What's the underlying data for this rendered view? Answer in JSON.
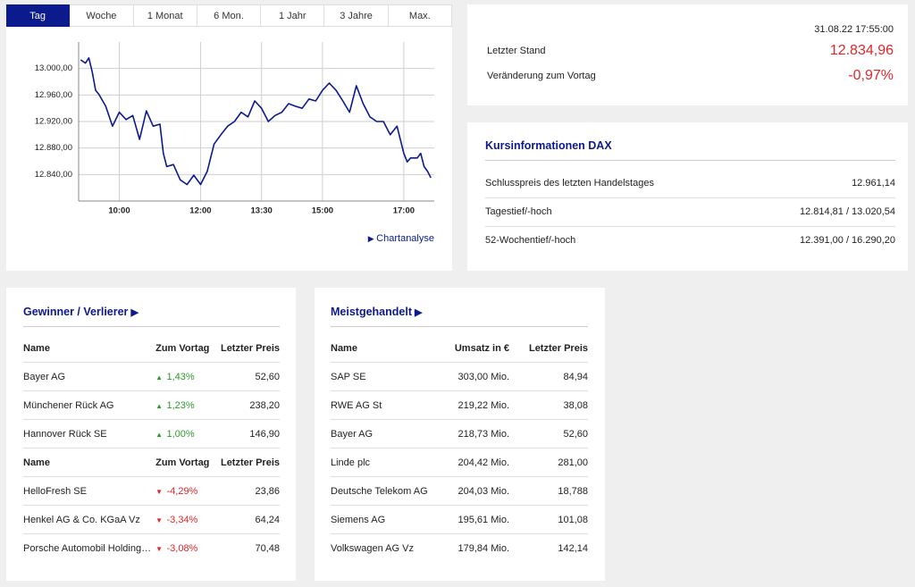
{
  "tabs": [
    "Tag",
    "Woche",
    "1 Monat",
    "6 Mon.",
    "1 Jahr",
    "3 Jahre",
    "Max."
  ],
  "chart_data": {
    "type": "line",
    "color": "#0b1a8c",
    "grid": true,
    "x": [
      "09:03",
      "09:10",
      "09:15",
      "09:20",
      "09:25",
      "09:30",
      "09:40",
      "09:50",
      "10:00",
      "10:10",
      "10:20",
      "10:30",
      "10:40",
      "10:50",
      "11:00",
      "11:05",
      "11:10",
      "11:20",
      "11:30",
      "11:40",
      "11:50",
      "12:00",
      "12:10",
      "12:20",
      "12:30",
      "12:40",
      "12:50",
      "13:00",
      "13:10",
      "13:20",
      "13:30",
      "13:40",
      "13:50",
      "14:00",
      "14:10",
      "14:20",
      "14:30",
      "14:40",
      "14:50",
      "15:00",
      "15:10",
      "15:20",
      "15:30",
      "15:40",
      "15:50",
      "16:00",
      "16:10",
      "16:20",
      "16:30",
      "16:40",
      "16:50",
      "17:00",
      "17:05",
      "17:10",
      "17:20",
      "17:25",
      "17:30",
      "17:35",
      "17:40"
    ],
    "values": [
      13013,
      13008,
      13016,
      12995,
      12967,
      12961,
      12943,
      12913,
      12934,
      12923,
      12929,
      12893,
      12936,
      12913,
      12916,
      12872,
      12852,
      12855,
      12832,
      12825,
      12839,
      12825,
      12845,
      12886,
      12900,
      12913,
      12920,
      12934,
      12927,
      12951,
      12940,
      12920,
      12929,
      12934,
      12947,
      12943,
      12940,
      12954,
      12951,
      12967,
      12978,
      12967,
      12951,
      12934,
      12974,
      12947,
      12927,
      12920,
      12920,
      12900,
      12913,
      12872,
      12859,
      12865,
      12865,
      12872,
      12852,
      12845,
      12835
    ],
    "xlim": [
      "09:00",
      "17:45"
    ],
    "xticks": [
      "10:00",
      "12:00",
      "13:30",
      "15:00",
      "17:00"
    ],
    "ylim": [
      12800,
      13040
    ],
    "yticks": [
      {
        "value": 12840,
        "label": "12.840,00"
      },
      {
        "value": 12880,
        "label": "12.880,00"
      },
      {
        "value": 12920,
        "label": "12.920,00"
      },
      {
        "value": 12960,
        "label": "12.960,00"
      },
      {
        "value": 13000,
        "label": "13.000,00"
      }
    ]
  },
  "chart_link": "Chartanalyse",
  "quote": {
    "timestamp": "31.08.22 17:55:00",
    "rows": [
      [
        "Letzter Stand",
        "12.834,96"
      ],
      [
        "Veränderung zum Vortag",
        "-0,97%"
      ]
    ]
  },
  "info": {
    "title": "Kursinformationen DAX",
    "rows": [
      [
        "Schlusspreis des letzten Handelstages",
        "12.961,14"
      ],
      [
        "Tagestief/-hoch",
        "12.814,81 / 13.020,54"
      ],
      [
        "52-Wochentief/-hoch",
        "12.391,00 / 16.290,20"
      ]
    ]
  },
  "movers": {
    "title": "Gewinner / Verlierer",
    "tables": [
      {
        "header": [
          "Name",
          "Zum Vortag",
          "Letzter Preis"
        ],
        "rows": [
          [
            "Bayer AG",
            "1,43%",
            "52,60"
          ],
          [
            "Münchener Rück AG",
            "1,23%",
            "238,20"
          ],
          [
            "Hannover Rück SE",
            "1,00%",
            "146,90"
          ]
        ]
      },
      {
        "header": [
          "Name",
          "Zum Vortag",
          "Letzter Preis"
        ],
        "rows": [
          [
            "HelloFresh SE",
            "-4,29%",
            "23,86"
          ],
          [
            "Henkel AG & Co. KGaA Vz",
            "-3,34%",
            "64,24"
          ],
          [
            "Porsche Automobil Holding…",
            "-3,08%",
            "70,48"
          ]
        ]
      }
    ]
  },
  "most_traded": {
    "title": "Meistgehandelt",
    "header": [
      "Name",
      "Umsatz in €",
      "Letzter Preis"
    ],
    "rows": [
      [
        "SAP SE",
        "303,00 Mio.",
        "84,94"
      ],
      [
        "RWE AG St",
        "219,22 Mio.",
        "38,08"
      ],
      [
        "Bayer AG",
        "218,73 Mio.",
        "52,60"
      ],
      [
        "Linde plc",
        "204,42 Mio.",
        "281,00"
      ],
      [
        "Deutsche Telekom AG",
        "204,03 Mio.",
        "18,788"
      ],
      [
        "Siemens AG",
        "195,61 Mio.",
        "101,08"
      ],
      [
        "Volkswagen AG Vz",
        "179,84 Mio.",
        "142,14"
      ]
    ]
  }
}
